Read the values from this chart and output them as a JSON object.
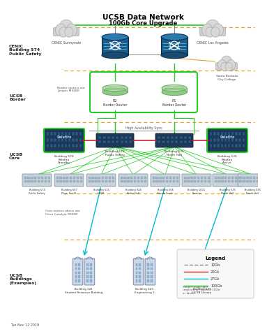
{
  "title": "UCSB Data Network",
  "subtitle": "100Gb Core Upgrade",
  "bg_color": "#ffffff",
  "dashed_color": "#e0a020",
  "green_color": "#22cc22",
  "red_color": "#cc2222",
  "cyan_color": "#00bbcc",
  "gray_color": "#888888",
  "orange_color": "#e8a030",
  "footnote": "Tue Nov 12 2019",
  "border_note": "Border routers are\nJuniper MX480",
  "core_note": "Core routers above are\nCisco Catalyst 9500R",
  "cloud_left_label": "CENIC Sunnyvale",
  "cloud_right_label": "CENIC Los Angeles",
  "cloud_sb_label": "Santa Barbara\nCity College",
  "sec_cenic": "CENIC\nBuilding 574\nPublic Safety",
  "sec_border": "UCSB\nBorder",
  "sec_core": "UCSB\nCore",
  "sec_buildings": "UCSB\nBuildings\n(Examples)",
  "r2_label": "R2\nBorder Router",
  "r1_label": "R1\nBorder Router",
  "ha_sync": "High Availability Sync",
  "core_left_label": "Building 574\nPalafito\nStandby",
  "core_ml_label": "Building 574\nPublic Safety",
  "core_mr_label": "Building 535\nNorth Hall",
  "core_right_label": "Building 535\nPalafito\nActive",
  "dist_labels": [
    "Building 574\nPublic Safety",
    "Building 657\nPhys. Sci. N.",
    "Building 515\nHSSB",
    "Building 944\nNolte Hall",
    "Building 506\nHarold Frank",
    "Building 1001\nPortola",
    "Building 535\nNorth Hall",
    "Building 535\nNorth Hall"
  ],
  "bldg_labels": [
    "Building 221\nStudent Resource Building",
    "Building 503\nEngineering 1",
    "Building 575\nUCSB Library"
  ],
  "legend_title": "Legend",
  "legend_items": [
    {
      "color": "#888888",
      "style": "--",
      "label": "10Gb"
    },
    {
      "color": "#cc2222",
      "style": "-",
      "label": "20Gb"
    },
    {
      "color": "#00bbcc",
      "style": "-",
      "label": "27Gb"
    },
    {
      "color": "#22cc22",
      "style": "-",
      "label": "100Gb"
    }
  ],
  "legend_note": "Single-mode fiber\nrequired for all links 10Gb\nor faster"
}
